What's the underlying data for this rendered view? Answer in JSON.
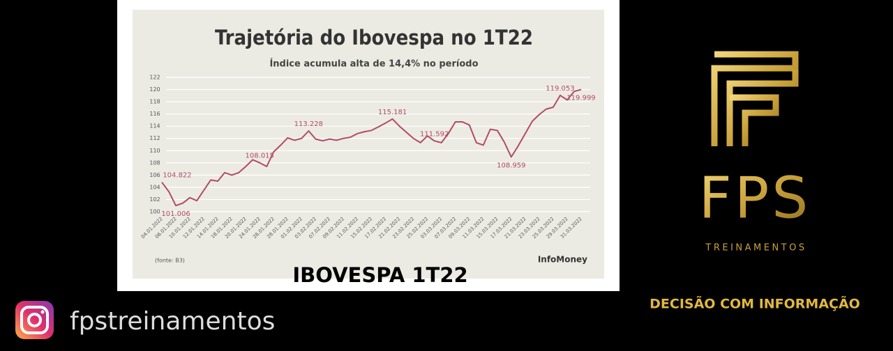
{
  "chart_data": {
    "type": "line",
    "title": "Trajetória do Ibovespa no 1T22",
    "subtitle": "Índice acumula alta de 14,4% no período",
    "source": "(fonte: B3)",
    "brand": "InfoMoney",
    "categories": [
      "04.01.2022",
      null,
      "06.01.2022",
      null,
      "10.01.2022",
      null,
      "12.01.2022",
      null,
      "14.01.2022",
      null,
      "18.01.2022",
      null,
      "20.01.2022",
      null,
      "24.01.2022",
      null,
      "26.01.2022",
      null,
      "28.01.2022",
      null,
      "01.02.2022",
      null,
      "03.02.2022",
      null,
      "07.02.2022",
      null,
      "09.02.2022",
      null,
      "11.02.2022",
      null,
      "15.02.2022",
      null,
      "17.02.2022",
      null,
      "21.02.2022",
      null,
      "23.02.2022",
      null,
      "25.02.2022",
      null,
      "03.03.2022",
      null,
      "07.03.2022",
      null,
      "09.03.2022",
      null,
      "11.03.2022",
      null,
      "15.03.2022",
      null,
      "17.03.2022",
      null,
      "21.03.2022",
      null,
      "23.03.2022",
      null,
      "25.03.2022",
      null,
      "29.03.2022",
      null,
      "31.03.2022"
    ],
    "values": [
      104.822,
      103.3,
      101.006,
      101.4,
      102.3,
      101.8,
      103.5,
      105.2,
      105.0,
      106.4,
      106.0,
      106.4,
      107.4,
      108.5,
      108.015,
      107.4,
      109.8,
      110.9,
      112.1,
      111.7,
      112.0,
      113.228,
      111.9,
      111.6,
      111.9,
      111.7,
      112.0,
      112.2,
      112.8,
      113.1,
      113.3,
      113.9,
      114.5,
      115.181,
      114.0,
      113.0,
      112.0,
      111.3,
      112.4,
      111.592,
      111.3,
      112.8,
      114.7,
      114.7,
      114.2,
      111.3,
      110.9,
      113.5,
      113.3,
      111.4,
      108.959,
      110.8,
      112.8,
      114.8,
      115.9,
      116.8,
      117.1,
      119.053,
      118.3,
      119.7,
      119.999
    ],
    "value_labels": [
      "104.822",
      null,
      "101.006",
      null,
      null,
      null,
      null,
      null,
      null,
      null,
      null,
      null,
      null,
      null,
      "108.015",
      null,
      null,
      null,
      null,
      null,
      null,
      "113.228",
      null,
      null,
      null,
      null,
      null,
      null,
      null,
      null,
      null,
      null,
      null,
      "115.181",
      null,
      null,
      null,
      null,
      null,
      "111.592",
      null,
      null,
      null,
      null,
      null,
      null,
      null,
      null,
      null,
      null,
      "108.959",
      null,
      null,
      null,
      null,
      null,
      null,
      "119.053",
      null,
      null,
      "119.999"
    ],
    "color": "#b24a66",
    "ylim": [
      100,
      122
    ],
    "yticks": [
      100,
      102,
      104,
      106,
      108,
      110,
      112,
      114,
      116,
      118,
      120,
      122
    ],
    "grid": true
  },
  "page": {
    "caption": "IBOVESPA 1T22",
    "logo_text": "FPS",
    "logo_sub": "TREINAMENTOS",
    "slogan": "DECISÃO COM INFORMAÇÃO",
    "instagram": "fpstreinamentos"
  }
}
